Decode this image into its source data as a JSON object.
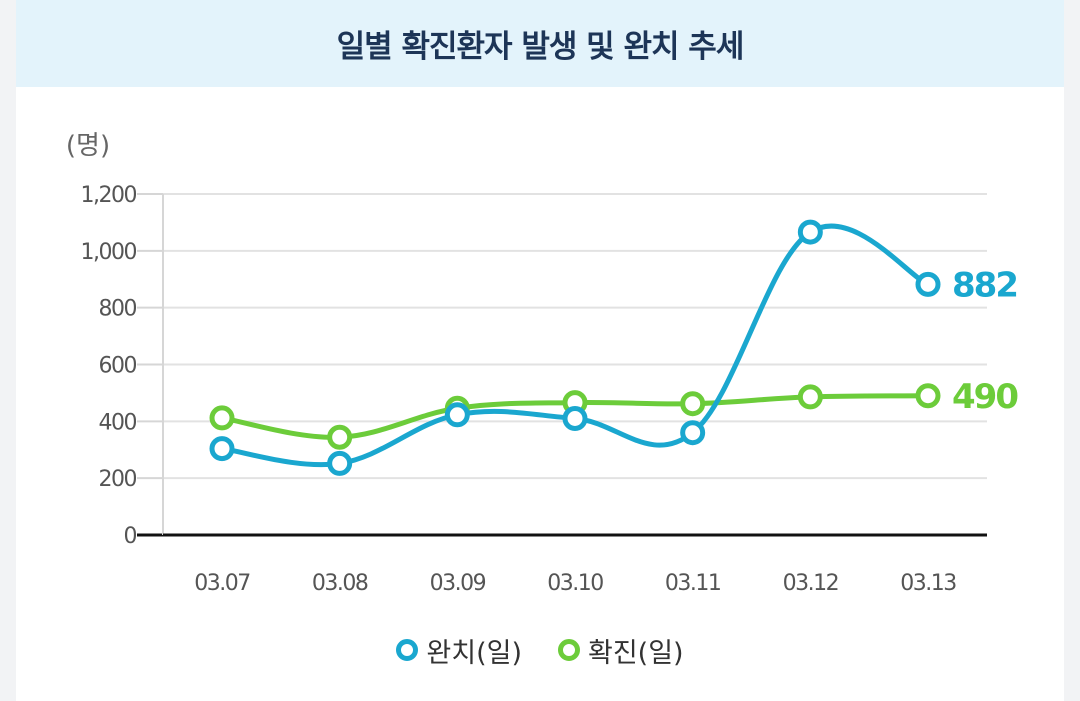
{
  "title": "일별 확진환자 발생 및 완치 추세",
  "colors": {
    "recovered": "#1aa7cf",
    "confirmed": "#6ccc3a"
  },
  "chart_data": {
    "type": "line",
    "title": "일별 확진환자 발생 및 완치 추세",
    "unit_label": "(명)",
    "categories": [
      "03.07",
      "03.08",
      "03.09",
      "03.10",
      "03.11",
      "03.12",
      "03.13"
    ],
    "series": [
      {
        "name": "완치(일)",
        "color": "#1aa7cf",
        "values": [
          304,
          252,
          423,
          410,
          360,
          1066,
          882
        ],
        "end_label": "882"
      },
      {
        "name": "확진(일)",
        "color": "#6ccc3a",
        "values": [
          412,
          344,
          446,
          466,
          462,
          486,
          490
        ],
        "end_label": "490"
      }
    ],
    "yticks": [
      0,
      200,
      400,
      600,
      800,
      1000,
      1200
    ],
    "ytick_labels": [
      "0",
      "200",
      "400",
      "600",
      "800",
      "1,000",
      "1,200"
    ],
    "ylim": [
      0,
      1200
    ],
    "grid": true,
    "legend_position": "bottom-center"
  }
}
